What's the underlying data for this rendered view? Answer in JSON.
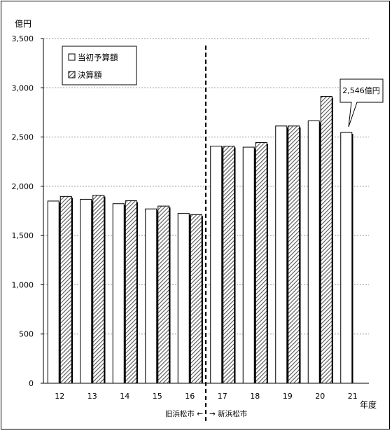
{
  "chart_data": {
    "type": "bar",
    "unit_label": "億円",
    "xlabel": "年度",
    "categories": [
      "12",
      "13",
      "14",
      "15",
      "16",
      "17",
      "18",
      "19",
      "20",
      "21"
    ],
    "series": [
      {
        "name": "当初予算額",
        "values": [
          1850,
          1868,
          1823,
          1770,
          1724,
          2408,
          2397,
          2612,
          2664,
          2546
        ]
      },
      {
        "name": "決算額",
        "values": [
          1897,
          1909,
          1853,
          1799,
          1712,
          2408,
          2444,
          2612,
          2913,
          null
        ]
      }
    ],
    "ylim": [
      0,
      3500
    ],
    "yticks": [
      "0",
      "500",
      "1,000",
      "1,500",
      "2,000",
      "2,500",
      "3,000",
      "3,500"
    ],
    "grid": true,
    "legend_position": "top-left",
    "callout": {
      "text": "2,546億円",
      "category": "21"
    },
    "divider": {
      "after_category": "16",
      "left_label": "旧浜松市 ←",
      "right_label": "→ 新浜松市"
    },
    "colors": {
      "initial_budget_fill": "#ffffff",
      "settlement_hatch": "#555555",
      "grid": "#999999"
    }
  }
}
